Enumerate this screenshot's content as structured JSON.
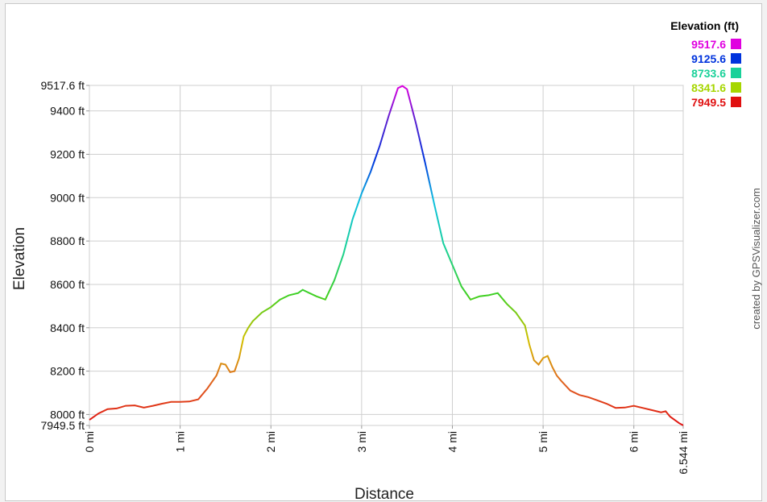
{
  "chart_data": {
    "type": "line",
    "xlabel": "Distance",
    "ylabel": "Elevation",
    "xlim": [
      0,
      6.544
    ],
    "ylim": [
      7949.5,
      9517.6
    ],
    "grid": true,
    "x_ticks": [
      {
        "v": 0,
        "label": "0 mi"
      },
      {
        "v": 1,
        "label": "1 mi"
      },
      {
        "v": 2,
        "label": "2 mi"
      },
      {
        "v": 3,
        "label": "3 mi"
      },
      {
        "v": 4,
        "label": "4 mi"
      },
      {
        "v": 5,
        "label": "5 mi"
      },
      {
        "v": 6,
        "label": "6 mi"
      },
      {
        "v": 6.544,
        "label": "6.544 mi"
      }
    ],
    "y_ticks": [
      {
        "v": 7949.5,
        "label": "7949.5 ft"
      },
      {
        "v": 8000,
        "label": "8000 ft"
      },
      {
        "v": 8200,
        "label": "8200 ft"
      },
      {
        "v": 8400,
        "label": "8400 ft"
      },
      {
        "v": 8600,
        "label": "8600 ft"
      },
      {
        "v": 8800,
        "label": "8800 ft"
      },
      {
        "v": 9000,
        "label": "9000 ft"
      },
      {
        "v": 9200,
        "label": "9200 ft"
      },
      {
        "v": 9400,
        "label": "9400 ft"
      },
      {
        "v": 9517.6,
        "label": "9517.6 ft"
      }
    ],
    "legend": {
      "title": "Elevation (ft)",
      "position": "top-right",
      "entries": [
        {
          "label": "9517.6",
          "color": "#e000e0"
        },
        {
          "label": "9125.6",
          "color": "#0033dd"
        },
        {
          "label": "8733.6",
          "color": "#19d199"
        },
        {
          "label": "8341.6",
          "color": "#a6d600"
        },
        {
          "label": "7949.5",
          "color": "#e01010"
        }
      ]
    },
    "series": [
      {
        "x": [
          0,
          0.1,
          0.2,
          0.3,
          0.4,
          0.5,
          0.6,
          0.7,
          0.8,
          0.9,
          1.0,
          1.1,
          1.2,
          1.3,
          1.4,
          1.45,
          1.5,
          1.55,
          1.6,
          1.65,
          1.7,
          1.75,
          1.8,
          1.9,
          2.0,
          2.1,
          2.2,
          2.3,
          2.35,
          2.4,
          2.5,
          2.6,
          2.7,
          2.8,
          2.9,
          3.0,
          3.1,
          3.2,
          3.3,
          3.4,
          3.45,
          3.5,
          3.6,
          3.7,
          3.8,
          3.9,
          4.0,
          4.1,
          4.2,
          4.3,
          4.4,
          4.5,
          4.6,
          4.7,
          4.8,
          4.85,
          4.9,
          4.95,
          5.0,
          5.05,
          5.1,
          5.15,
          5.2,
          5.3,
          5.4,
          5.5,
          5.6,
          5.7,
          5.8,
          5.9,
          6.0,
          6.1,
          6.2,
          6.3,
          6.35,
          6.4,
          6.5,
          6.544
        ],
        "y": [
          7975,
          8005,
          8025,
          8028,
          8040,
          8042,
          8032,
          8040,
          8050,
          8058,
          8058,
          8060,
          8070,
          8120,
          8180,
          8235,
          8230,
          8195,
          8200,
          8260,
          8360,
          8400,
          8430,
          8470,
          8495,
          8530,
          8550,
          8560,
          8575,
          8565,
          8545,
          8530,
          8620,
          8740,
          8900,
          9020,
          9120,
          9240,
          9380,
          9505,
          9515,
          9500,
          9340,
          9160,
          8970,
          8790,
          8690,
          8590,
          8530,
          8545,
          8550,
          8560,
          8510,
          8470,
          8410,
          8320,
          8250,
          8230,
          8260,
          8270,
          8220,
          8180,
          8155,
          8110,
          8090,
          8080,
          8065,
          8050,
          8030,
          8032,
          8040,
          8030,
          8020,
          8010,
          8015,
          7990,
          7960,
          7950
        ]
      }
    ]
  },
  "credit": "created by GPSVisualizer.com"
}
